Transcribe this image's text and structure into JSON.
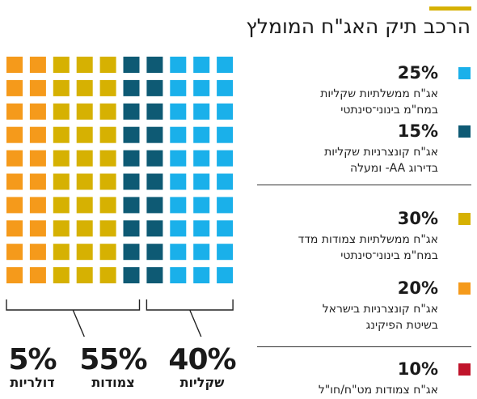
{
  "title": "הרכב תיק האג\"ח המומלץ",
  "colors": {
    "accent_bar": "#d6b102",
    "light_blue": "#1ab0ea",
    "dark_blue": "#0e5a74",
    "mustard": "#d6b102",
    "orange": "#f59a1b",
    "red": "#c0142b"
  },
  "chart_data": {
    "type": "waffle",
    "grid": {
      "rows": 10,
      "cols": 10
    },
    "segments": [
      {
        "value": 25,
        "color": "#1ab0ea",
        "pct_label": "25%",
        "line1": "אג\"ח ממשלתיות שקליות",
        "line2": "במח\"מ בינוני־סינתטי"
      },
      {
        "value": 15,
        "color": "#0e5a74",
        "pct_label": "15%",
        "line1": "אג\"ח קונצרניות שקליות",
        "line2": "בדירוג AA- ומעלה"
      },
      {
        "value": 30,
        "color": "#d6b102",
        "pct_label": "30%",
        "line1": "אג\"ח ממשלתיות צמודות מדד",
        "line2": "במח\"מ בינוני־סינתטי"
      },
      {
        "value": 20,
        "color": "#f59a1b",
        "pct_label": "20%",
        "line1": "אג\"ח קונצרניות בישראל",
        "line2": "בשיטת הפיקינג"
      },
      {
        "value": 10,
        "color": "#c0142b",
        "pct_label": "10%",
        "line1": "אג\"ח צמודות מט\"ח/חו\"ל",
        "line2": ""
      }
    ],
    "groups": [
      {
        "pct": "40%",
        "label": "שקליות",
        "value": 40
      },
      {
        "pct": "55%",
        "label": "צמודות",
        "value": 55
      },
      {
        "pct": "5%",
        "label": "דולריות",
        "value": 5
      }
    ]
  }
}
